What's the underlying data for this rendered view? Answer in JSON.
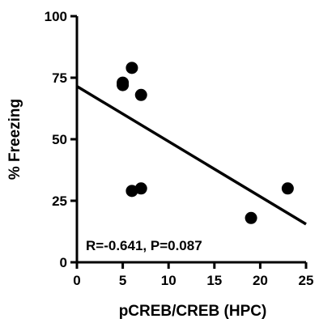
{
  "chart_data": {
    "type": "scatter",
    "title": "",
    "xlabel": "pCREB/CREB (HPC)",
    "ylabel": "% Freezing",
    "xlim": [
      0,
      25
    ],
    "ylim": [
      0,
      100
    ],
    "xticks": [
      "0",
      "5",
      "10",
      "15",
      "20",
      "25"
    ],
    "yticks": [
      "0",
      "25",
      "50",
      "75",
      "100"
    ],
    "grid": false,
    "legend": "none",
    "points": [
      {
        "x": 5.0,
        "y": 72
      },
      {
        "x": 5.0,
        "y": 73
      },
      {
        "x": 6.0,
        "y": 79
      },
      {
        "x": 7.0,
        "y": 68
      },
      {
        "x": 6.0,
        "y": 29
      },
      {
        "x": 7.0,
        "y": 30
      },
      {
        "x": 19.0,
        "y": 18
      },
      {
        "x": 23.0,
        "y": 30
      }
    ],
    "fit_line": {
      "x": [
        0,
        25
      ],
      "y": [
        71.5,
        15.5
      ]
    },
    "annotation": "R=-0.641, P=0.087",
    "colors": {
      "marker": "#000000",
      "line": "#000000",
      "axis": "#000000"
    }
  }
}
